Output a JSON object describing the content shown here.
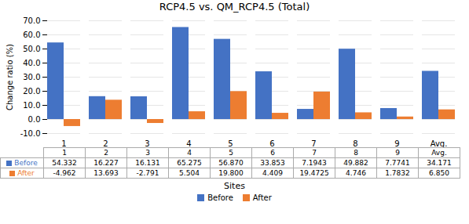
{
  "chart_data": {
    "type": "bar",
    "title": "RCP4.5 vs. QM_RCP4.5 (Total)",
    "xlabel": "Sites",
    "ylabel": "Change ratio (%)",
    "categories": [
      "1",
      "2",
      "3",
      "4",
      "5",
      "6",
      "7",
      "8",
      "9",
      "Avg."
    ],
    "series": [
      {
        "name": "Before",
        "color": "#4472C4",
        "values": [
          54.332,
          16.227,
          16.131,
          65.275,
          56.87,
          33.853,
          7.1943,
          49.882,
          7.7741,
          34.171
        ],
        "value_labels": [
          "54.332",
          "16.227",
          "16.131",
          "65.275",
          "56.870",
          "33.853",
          "7.1943",
          "49.882",
          "7.7741",
          "34.171"
        ]
      },
      {
        "name": "After",
        "color": "#ED7D31",
        "values": [
          -4.962,
          13.693,
          -2.791,
          5.504,
          19.8,
          4.409,
          19.4725,
          4.746,
          1.7832,
          6.85
        ],
        "value_labels": [
          "-4.962",
          "13.693",
          "-2.791",
          "5.504",
          "19.800",
          "4.409",
          "19.4725",
          "4.746",
          "1.7832",
          "6.850"
        ]
      }
    ],
    "ylim": [
      -10,
      70
    ],
    "yticks": [
      {
        "value": -10,
        "label": "-10.0"
      },
      {
        "value": 0,
        "label": "0.0"
      },
      {
        "value": 10,
        "label": "10.0"
      },
      {
        "value": 20,
        "label": "20.0"
      },
      {
        "value": 30,
        "label": "30.0"
      },
      {
        "value": 40,
        "label": "40.0"
      },
      {
        "value": 50,
        "label": "50.0"
      },
      {
        "value": 60,
        "label": "60.0"
      },
      {
        "value": 70,
        "label": "70.0"
      }
    ],
    "grid": true,
    "legend": "bottom",
    "data_labels": true
  }
}
